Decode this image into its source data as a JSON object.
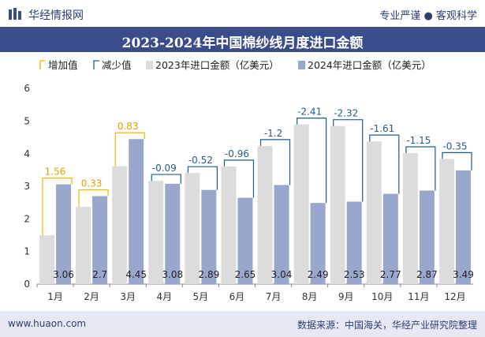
{
  "header": {
    "brand": "华经情报网",
    "slogan": "专业严谨 ● 客观科学"
  },
  "footer": {
    "website": "www.huaon.com",
    "source": "数据来源：中国海关，华经产业研究院整理"
  },
  "colors": {
    "series_2023": "#dcdcdc",
    "series_2024": "#9aa7cc",
    "increase": "#f2b705",
    "decrease": "#1f5c8b",
    "title_bg": "#3b4c8a"
  },
  "chart_data": {
    "type": "bar",
    "title": "2023-2024年中国棉纱线月度进口金额",
    "categories": [
      "1月",
      "2月",
      "3月",
      "4月",
      "5月",
      "6月",
      "7月",
      "8月",
      "9月",
      "10月",
      "11月",
      "12月"
    ],
    "series": [
      {
        "name": "2023年进口金额（亿美元）",
        "values": [
          1.5,
          2.37,
          3.62,
          3.17,
          3.41,
          3.61,
          4.24,
          4.9,
          4.85,
          4.38,
          4.02,
          3.84
        ]
      },
      {
        "name": "2024年进口金额（亿美元）",
        "values": [
          3.06,
          2.7,
          4.45,
          3.08,
          2.89,
          2.65,
          3.04,
          2.49,
          2.53,
          2.77,
          2.87,
          3.49
        ]
      }
    ],
    "changes": [
      {
        "name": "增加值",
        "values": [
          1.56,
          0.33,
          0.83,
          null,
          null,
          null,
          null,
          null,
          null,
          null,
          null,
          null
        ]
      },
      {
        "name": "减少值",
        "values": [
          null,
          null,
          null,
          -0.09,
          -0.52,
          -0.96,
          -1.2,
          -2.41,
          -2.32,
          -1.61,
          -1.15,
          -0.35
        ]
      }
    ],
    "change_labels": [
      "1.56",
      "0.33",
      "0.83",
      "-0.09",
      "-0.52",
      "-0.96",
      "-1.2",
      "-2.41",
      "-2.32",
      "-1.61",
      "-1.15",
      "-0.35"
    ],
    "value_labels_2024": [
      "3.06",
      "2.7",
      "4.45",
      "3.08",
      "2.89",
      "2.65",
      "3.04",
      "2.49",
      "2.53",
      "2.77",
      "2.87",
      "3.49"
    ],
    "legend": [
      "增加值",
      "减少值",
      "2023年进口金额（亿美元）",
      "2024年进口金额（亿美元）"
    ],
    "legend_position": "top-left",
    "yticks": [
      "0",
      "1",
      "2",
      "3",
      "4",
      "5",
      "6"
    ],
    "ylim": [
      0,
      6
    ],
    "grid": false
  }
}
